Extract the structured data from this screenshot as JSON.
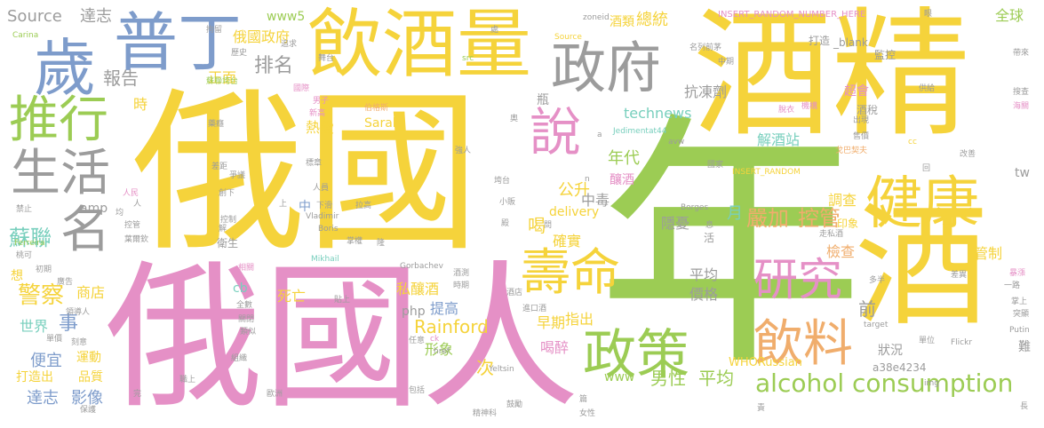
{
  "cloud": {
    "w01": "俄國",
    "w02": "酒精",
    "w03": "年",
    "w04": "俄國人",
    "w05": "酒",
    "w06": "飲酒量",
    "w07": "普丁",
    "w08": "歲",
    "w09": "政府",
    "w10": "健康",
    "w11": "推行",
    "w12": "說",
    "w13": "生活",
    "w14": "壽命",
    "w15": "政策",
    "w16": "名",
    "w17": "研究",
    "w18": "飲料",
    "w19": "alcohol consumption",
    "w20": "蘇聯",
    "w21": "警察",
    "w22": "嚴加",
    "w23": "控管",
    "w24": "Source",
    "w25": "達志",
    "w26": "報告",
    "w27": "排名",
    "w28": "俄國政府",
    "w29": "正面",
    "w30": "www5",
    "w31": "年代",
    "w32": "公升",
    "w33": "喝",
    "w34": "前",
    "w35": "男性",
    "w36": "平均",
    "w37": "影像",
    "w38": "達志",
    "w39": "便宜",
    "w40": "世界",
    "w41": "事",
    "w42": "商店",
    "w43": "Rainford",
    "w44": "Sarah",
    "w45": "technews",
    "w46": "解酒站",
    "w47": "抗凍劑",
    "w48": "總統",
    "w49": "酒類",
    "w50": "全球",
    "w51": "熱愛",
    "w52": "時",
    "w53": "死亡",
    "w54": "私釀酒",
    "w55": "提高",
    "w56": "php",
    "w57": "早期",
    "w58": "指出",
    "w59": "喝醉",
    "w60": "形象",
    "w61": "次",
    "w62": "www",
    "w63": "delivery",
    "w64": "確實",
    "w65": "隱憂",
    "w66": "中毒",
    "w67": "月",
    "w68": "平均",
    "w69": "價格",
    "w70": "檢查",
    "w71": "管制",
    "w72": "調查",
    "w73": "印象",
    "w74": "運動",
    "w75": "品質",
    "w76": "打造出",
    "w77": "cb",
    "w78": "amp",
    "w79": "中",
    "w80": "釀酒",
    "w81": "瓶",
    "w82": "WHORussian",
    "w83": "a38e4234",
    "w84": "狀況",
    "w85": "難",
    "w86": "tw",
    "w87": "想",
    "w88": "超會",
    "w89": "酒稅",
    "w90": "監控",
    "w91": "打造",
    "w92": "_blank",
    "w93": "INSERT_RANDOM_NUMBER_HERE",
    "w94": "zoneid",
    "w95": "Source",
    "w96": "src",
    "w97": "Carina",
    "w98": "拘留",
    "w99": "歷史",
    "w100": "追求",
    "w101": "舞台",
    "w102": "國際",
    "w103": "男子",
    "w104": "新高",
    "w105": "伯格斯",
    "w106": "蘇聯垮台",
    "w107": "名列前茅",
    "w108": "Jedimentat44",
    "w109": "avw",
    "w110": "cc",
    "w111": "INSERT_RANDOM",
    "w112": "Borges",
    "w113": "Vladimir",
    "w114": "Boris",
    "w115": "Mikhail",
    "w116": "Gorbachev",
    "w117": "Yeltsin",
    "w118": "Ferreira",
    "w119": "Flickr",
    "w120": "Putin",
    "w121": "target",
    "w122": "href",
    "w123": "ck",
    "w124": "img",
    "w125": "戈巴契夫",
    "w126": "售價",
    "w127": "機構",
    "w128": "脫衣",
    "w129": "供給",
    "w130": "帶來",
    "w131": "搜查",
    "w132": "海關",
    "w133": "出現",
    "w134": "國家",
    "w135": "改善",
    "w136": "回",
    "w137": "走私酒",
    "w138": "人民",
    "w139": "禁止",
    "w140": "組織",
    "w141": "歐洲",
    "w142": "精神科",
    "w143": "鼓勵",
    "w144": "女性",
    "w145": "包括",
    "w146": "單位",
    "w147": "突顯",
    "w148": "暴漲",
    "w149": "一路",
    "w150": "差異",
    "w151": "多半",
    "w152": "拉高",
    "w153": "強人",
    "w154": "小販",
    "w155": "垮台",
    "w156": "控制",
    "w157": "衛生",
    "w158": "掌權",
    "w159": "相關",
    "w160": "全數",
    "w161": "關閉",
    "w162": "類似",
    "w163": "保護",
    "w164": "職上",
    "w165": "刻意",
    "w166": "單價",
    "w167": "領導人",
    "w168": "廣告",
    "w169": "初期",
    "w170": "桃可",
    "w171": "控管",
    "w172": "葉爾欽",
    "w173": "爭議",
    "w174": "標章",
    "w175": "創下",
    "w176": "藥癮",
    "w177": "差距",
    "w178": "人員",
    "w179": "下滑",
    "w180": "進口酒",
    "w181": "酒店",
    "w182": "時期",
    "w183": "酒測",
    "w184": "任意",
    "w185": "奧",
    "w186": "眼",
    "w187": "長",
    "w188": "責",
    "w189": "a",
    "w190": "n",
    "w191": "中期",
    "w192": "處",
    "w193": "隆",
    "w194": "均",
    "w195": "殿",
    "w196": "息",
    "w197": "完",
    "w198": "解",
    "w199": "活",
    "w200": "人",
    "w201": "上",
    "w202": "貼上",
    "w203": "篇",
    "w204": "問",
    "w205": "掌上"
  }
}
